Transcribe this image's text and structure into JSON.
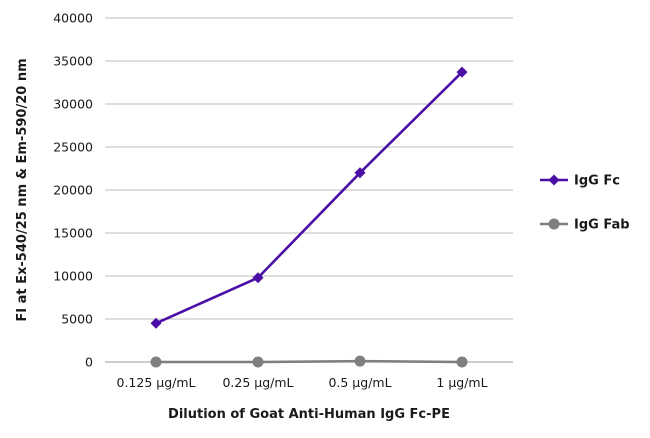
{
  "chart_data": {
    "type": "line",
    "categories": [
      "0.125 µg/mL",
      "0.25 µg/mL",
      "0.5 µg/mL",
      "1 µg/mL"
    ],
    "series": [
      {
        "name": "IgG Fc",
        "values": [
          4500,
          9800,
          22000,
          33700
        ],
        "color": "#4b0fa6",
        "marker": "diamond"
      },
      {
        "name": "IgG Fab",
        "values": [
          0,
          0,
          100,
          0
        ],
        "color": "#7f7f7f",
        "marker": "circle"
      }
    ],
    "xlabel": "Dilution of Goat Anti-Human IgG Fc-PE",
    "ylabel": "FI at Ex-540/25 nm & Em-590/20 nm",
    "ylim": [
      0,
      40000
    ],
    "yticks": [
      0,
      5000,
      10000,
      15000,
      20000,
      25000,
      30000,
      35000,
      40000
    ],
    "grid": true,
    "legend_position": "right"
  }
}
